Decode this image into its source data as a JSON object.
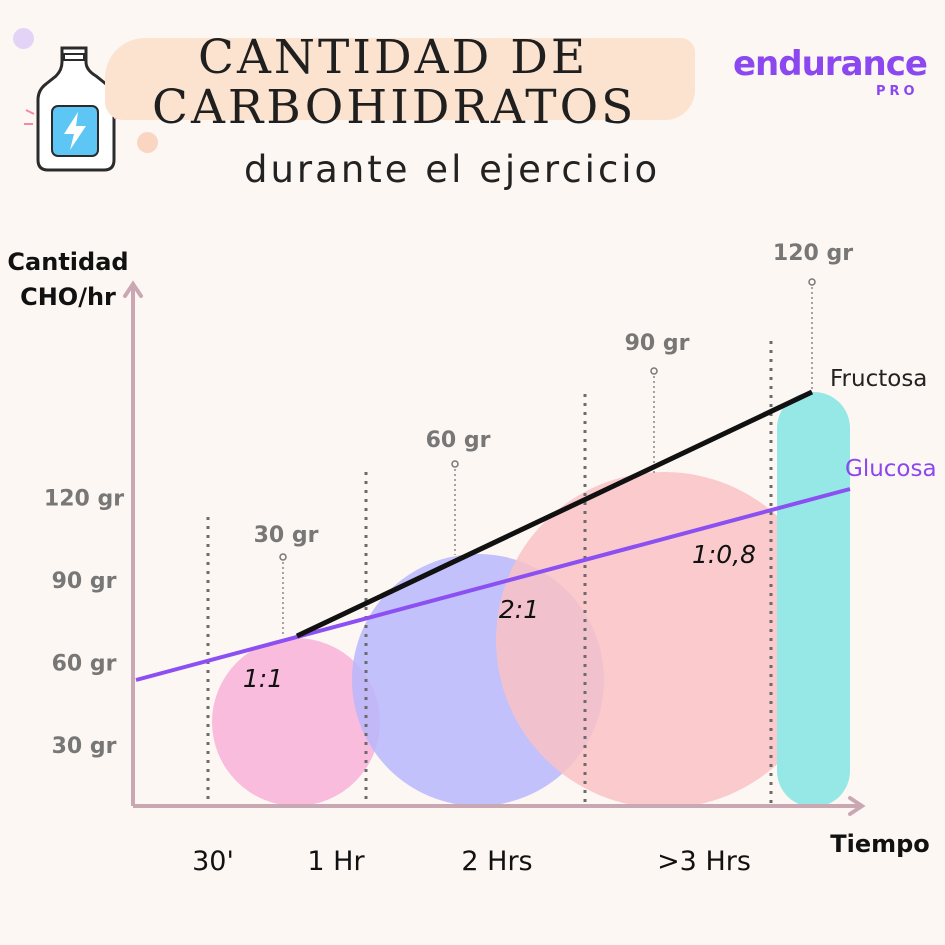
{
  "header": {
    "title_line1": "CANTIDAD DE",
    "title_line2": "CARBOHIDRATOS",
    "subtitle": "durante el ejercicio",
    "logo_main": "endurance",
    "logo_sub": "PRO"
  },
  "colors": {
    "background": "#fdf7f3",
    "axis": "#c9a8b4",
    "fructose_line": "#111111",
    "glucose_line": "#8b4ff2",
    "bubble_1_1": "#f9b2d8",
    "bubble_2_1": "#b7b7fb",
    "bubble_1_08": "#f9c2c4",
    "bar_120": "#96e8e6",
    "label_grey": "#777777",
    "accent_purple": "#8b47f0"
  },
  "chart_data": {
    "type": "line",
    "ylabel_line1": "Cantidad",
    "ylabel_line2": "CHO/hr",
    "xlabel": "Tiempo",
    "y_ticks": [
      "30 gr",
      "60 gr",
      "90 gr",
      "120 gr"
    ],
    "y_tick_values": [
      30,
      60,
      90,
      120
    ],
    "x_ticks": [
      "30'",
      "1 Hr",
      "2 Hrs",
      ">3 Hrs"
    ],
    "series": [
      {
        "name": "Fructosa",
        "color": "#111111",
        "points": [
          [
            1,
            38
          ],
          [
            3.25,
            125
          ]
        ]
      },
      {
        "name": "Glucosa",
        "color": "#8b4ff2",
        "points": [
          [
            0,
            20
          ],
          [
            3.5,
            90
          ]
        ]
      }
    ],
    "stages": [
      {
        "time": "30'",
        "amount_label": "30 gr",
        "amount": 30,
        "ratio": "1:1",
        "color": "#f9b2d8"
      },
      {
        "time": "1 Hr",
        "amount_label": "60 gr",
        "amount": 60,
        "ratio": "2:1",
        "color": "#b7b7fb"
      },
      {
        "time": "2 Hrs",
        "amount_label": "90 gr",
        "amount": 90,
        "ratio": "1:0,8",
        "color": "#f9c2c4"
      },
      {
        "time": ">3 Hrs",
        "amount_label": "120 gr",
        "amount": 120,
        "ratio": "",
        "color": "#96e8e6"
      }
    ]
  }
}
